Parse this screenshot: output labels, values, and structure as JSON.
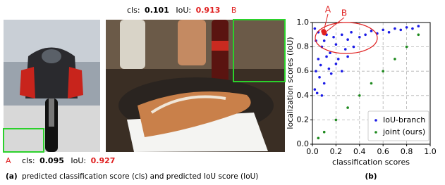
{
  "panel_a": {
    "label_b": {
      "cls_label": "cls:",
      "cls": 0.101,
      "iou_label": "IoU:",
      "iou": 0.913,
      "letter": "B"
    },
    "label_a": {
      "letter": "A",
      "cls_label": "cls:",
      "cls": 0.095,
      "iou_label": "IoU:",
      "iou": 0.927
    },
    "caption": {
      "tag": "(a)",
      "text": "predicted classification score (cls) and predicted IoU score (IoU)"
    }
  },
  "chart_data": {
    "type": "scatter",
    "caption": "(b)",
    "x_label": "classification scores",
    "y_label": "localization scores (IoU)",
    "xlim": [
      0,
      1
    ],
    "ylim": [
      0,
      1
    ],
    "xticks": [
      {
        "value": 0,
        "label": "0.0"
      },
      0.2,
      0.4,
      0.6,
      0.8,
      {
        "value": 1,
        "label": "1.0"
      }
    ],
    "yticks": [
      {
        "value": 0,
        "label": "0.0"
      },
      0.2,
      0.4,
      0.6,
      0.8,
      {
        "value": 1,
        "label": "1.0"
      }
    ],
    "grid": true,
    "legend": "lower right",
    "annotations": [
      "A",
      "B"
    ],
    "series": [
      {
        "name": "IoU-branch",
        "color": "#1a1ae6",
        "x": [
          0.02,
          0.03,
          0.05,
          0.06,
          0.08,
          0.1,
          0.12,
          0.04,
          0.07,
          0.15,
          0.18,
          0.2,
          0.22,
          0.25,
          0.28,
          0.3,
          0.33,
          0.35,
          0.4,
          0.45,
          0.5,
          0.55,
          0.6,
          0.65,
          0.7,
          0.75,
          0.8,
          0.85,
          0.9,
          0.02,
          0.05,
          0.1,
          0.14,
          0.03,
          0.08,
          0.12,
          0.16,
          0.2,
          0.25,
          0.3
        ],
        "values": [
          0.45,
          0.6,
          0.7,
          0.55,
          0.8,
          0.85,
          0.9,
          0.42,
          0.65,
          0.75,
          0.88,
          0.82,
          0.7,
          0.9,
          0.78,
          0.86,
          0.92,
          0.8,
          0.88,
          0.9,
          0.93,
          0.91,
          0.94,
          0.92,
          0.95,
          0.94,
          0.96,
          0.95,
          0.97,
          0.95,
          0.92,
          0.5,
          0.62,
          0.85,
          0.4,
          0.72,
          0.58,
          0.66,
          0.6,
          0.72
        ]
      },
      {
        "name": "joint (ours)",
        "color": "#1f8a1f",
        "x": [
          0.05,
          0.1,
          0.2,
          0.3,
          0.4,
          0.5,
          0.6,
          0.7,
          0.8,
          0.9
        ],
        "values": [
          0.05,
          0.1,
          0.2,
          0.3,
          0.4,
          0.5,
          0.6,
          0.7,
          0.8,
          0.9
        ]
      }
    ]
  }
}
